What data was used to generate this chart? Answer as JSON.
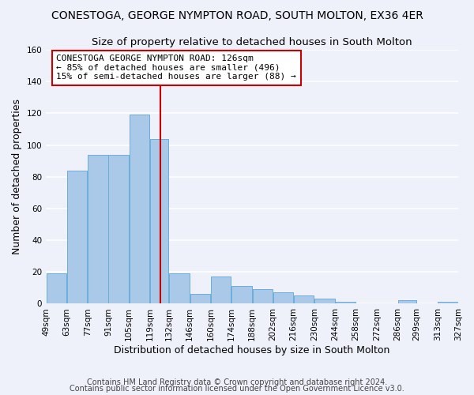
{
  "title": "CONESTOGA, GEORGE NYMPTON ROAD, SOUTH MOLTON, EX36 4ER",
  "subtitle": "Size of property relative to detached houses in South Molton",
  "xlabel": "Distribution of detached houses by size in South Molton",
  "ylabel": "Number of detached properties",
  "bar_edges": [
    49,
    63,
    77,
    91,
    105,
    119,
    132,
    146,
    160,
    174,
    188,
    202,
    216,
    230,
    244,
    258,
    272,
    286,
    299,
    313,
    327
  ],
  "bar_heights": [
    19,
    84,
    94,
    94,
    119,
    104,
    19,
    6,
    17,
    11,
    9,
    7,
    5,
    3,
    1,
    0,
    0,
    2,
    0,
    1
  ],
  "bar_color": "#aac9e8",
  "bar_edgecolor": "#6aadda",
  "vline_x": 126,
  "vline_color": "#cc0000",
  "annotation_text": "CONESTOGA GEORGE NYMPTON ROAD: 126sqm\n← 85% of detached houses are smaller (496)\n15% of semi-detached houses are larger (88) →",
  "annotation_box_edgecolor": "#cc0000",
  "annotation_box_facecolor": "#ffffff",
  "ylim": [
    0,
    160
  ],
  "yticks": [
    0,
    20,
    40,
    60,
    80,
    100,
    120,
    140,
    160
  ],
  "tick_labels": [
    "49sqm",
    "63sqm",
    "77sqm",
    "91sqm",
    "105sqm",
    "119sqm",
    "132sqm",
    "146sqm",
    "160sqm",
    "174sqm",
    "188sqm",
    "202sqm",
    "216sqm",
    "230sqm",
    "244sqm",
    "258sqm",
    "272sqm",
    "286sqm",
    "299sqm",
    "313sqm",
    "327sqm"
  ],
  "footer_line1": "Contains HM Land Registry data © Crown copyright and database right 2024.",
  "footer_line2": "Contains public sector information licensed under the Open Government Licence v3.0.",
  "background_color": "#eef1fa",
  "title_fontsize": 10,
  "subtitle_fontsize": 9.5,
  "axis_label_fontsize": 9,
  "tick_fontsize": 7.5,
  "annotation_fontsize": 8,
  "footer_fontsize": 7
}
